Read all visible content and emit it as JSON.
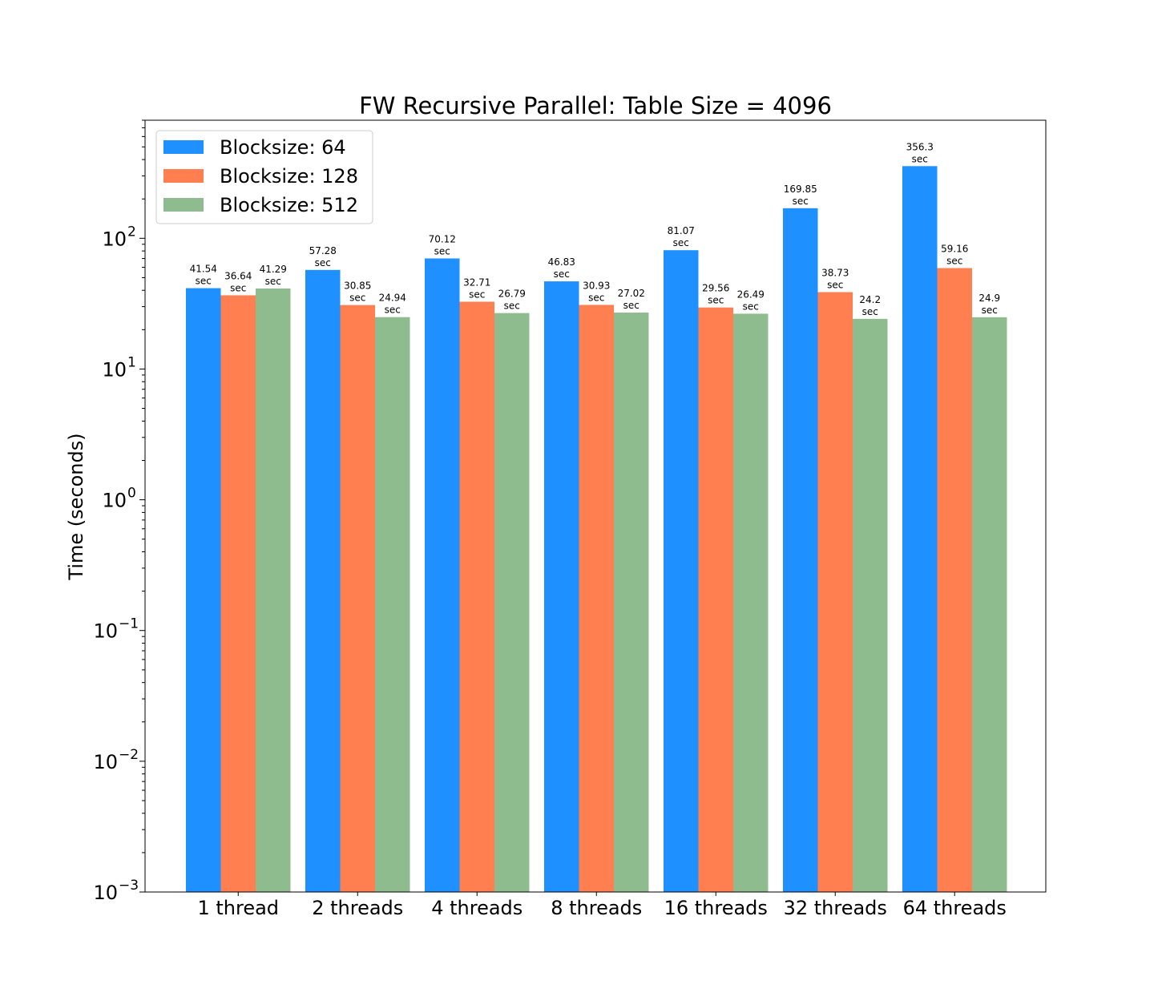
{
  "chart_data": {
    "type": "bar",
    "title": "FW Recursive Parallel: Table Size = 4096",
    "xlabel": "",
    "ylabel": "Time (seconds)",
    "yscale": "log",
    "ylim": [
      0.001,
      800
    ],
    "grid": false,
    "legend_position": "top-left",
    "categories": [
      "1 thread",
      "2 threads",
      "4 threads",
      "8 threads",
      "16 threads",
      "32 threads",
      "64 threads"
    ],
    "series": [
      {
        "name": "Blocksize: 64",
        "color": "#1e90ff",
        "values": [
          41.54,
          57.28,
          70.12,
          46.83,
          81.07,
          169.85,
          356.3
        ]
      },
      {
        "name": "Blocksize: 128",
        "color": "#ff7f50",
        "values": [
          36.64,
          30.85,
          32.71,
          30.93,
          29.56,
          38.73,
          59.16
        ]
      },
      {
        "name": "Blocksize: 512",
        "color": "#8fbc8f",
        "values": [
          41.29,
          24.94,
          26.79,
          27.02,
          26.49,
          24.2,
          24.9
        ]
      }
    ],
    "value_label_unit": "sec",
    "yticks": [
      {
        "base": "10",
        "exp": "−3"
      },
      {
        "base": "10",
        "exp": "−2"
      },
      {
        "base": "10",
        "exp": "−1"
      },
      {
        "base": "10",
        "exp": "0"
      },
      {
        "base": "10",
        "exp": "1"
      },
      {
        "base": "10",
        "exp": "2"
      }
    ]
  }
}
